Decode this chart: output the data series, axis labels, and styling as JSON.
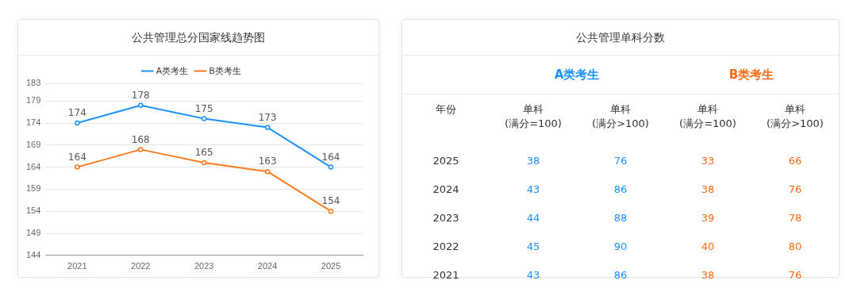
{
  "chart_data": [
    {
      "type": "line",
      "title": "公共管理总分国家线趋势图",
      "categories": [
        "2021",
        "2022",
        "2023",
        "2024",
        "2025"
      ],
      "series": [
        {
          "name": "A类考生",
          "color": "#1e90ff",
          "values": [
            174,
            178,
            175,
            173,
            164
          ]
        },
        {
          "name": "B类考生",
          "color": "#ff7a1f",
          "values": [
            164,
            168,
            165,
            163,
            154
          ]
        }
      ],
      "ylim": [
        144,
        183
      ],
      "yticks": [
        144,
        149,
        154,
        159,
        164,
        169,
        174,
        179,
        183
      ],
      "grid": "y",
      "legend": "top",
      "marker": "circle",
      "line_style": "solid",
      "data_labels": true
    },
    {
      "type": "heatmap",
      "title": "公共管理单科分数",
      "ylabel": "年份",
      "annotations": [
        "A类考生",
        "B类考生"
      ],
      "categories": [
        "单科\n(满分=100)",
        "单科\n(满分>100)",
        "单科\n(满分=100)",
        "单科\n(满分>100)"
      ],
      "colors": [
        "#1e90ff",
        "#1e90ff",
        "#ff6a13",
        "#ff6a13"
      ],
      "y_categories": [
        "2025",
        "2024",
        "2023",
        "2022",
        "2021"
      ],
      "data_labels": true,
      "cells": [
        [
          38,
          76,
          33,
          66
        ],
        [
          43,
          86,
          38,
          76
        ],
        [
          44,
          88,
          39,
          78
        ],
        [
          45,
          90,
          40,
          80
        ],
        [
          43,
          86,
          38,
          76
        ]
      ]
    }
  ]
}
